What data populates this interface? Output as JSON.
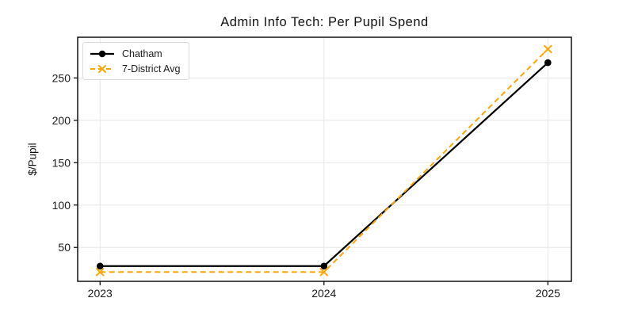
{
  "chart_data": {
    "type": "line",
    "title": "Admin Info Tech: Per Pupil Spend",
    "xlabel": "",
    "ylabel": "$/Pupil",
    "x": [
      2023,
      2024,
      2025
    ],
    "series": [
      {
        "name": "Chatham",
        "color": "#000000",
        "linestyle": "solid",
        "linewidth": 2.2,
        "marker": "circle",
        "values": [
          28,
          28,
          268
        ]
      },
      {
        "name": "7-District Avg",
        "color": "#FFA500",
        "linestyle": "dashed",
        "linewidth": 2,
        "marker": "x",
        "values": [
          21,
          21,
          284
        ]
      }
    ],
    "xticks": [
      "2023",
      "2024",
      "2025"
    ],
    "xtick_values": [
      2023,
      2024,
      2025
    ],
    "yticks": [
      "50",
      "100",
      "150",
      "200",
      "250"
    ],
    "ytick_values": [
      50,
      100,
      150,
      200,
      250
    ],
    "xlim": [
      2022.9,
      2025.105
    ],
    "ylim": [
      10,
      298
    ],
    "grid": true,
    "legend": {
      "position": "upper left",
      "entries": [
        "Chatham",
        "7-District Avg"
      ]
    },
    "style": {
      "grid_color": "#e6e6e6",
      "axis_color": "#000000",
      "tick_text_color": "#1a1a1a",
      "background": "#ffffff"
    }
  }
}
